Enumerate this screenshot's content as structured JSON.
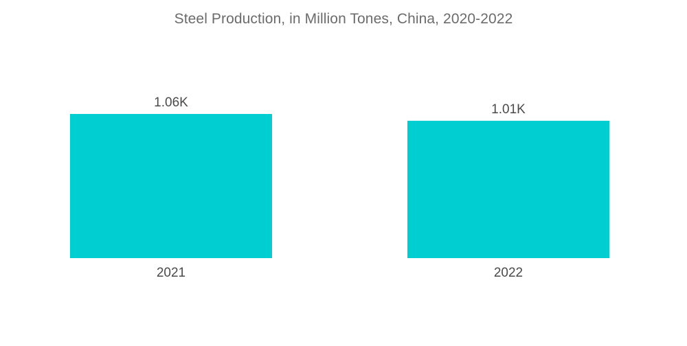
{
  "colors": {
    "bar": "#00CED1",
    "text": "#4a4a4a",
    "title": "#6b6b6b"
  },
  "chart_data": {
    "type": "bar",
    "title": "Steel Production, in Million Tones, China, 2020-2022",
    "categories": [
      "2021",
      "2022"
    ],
    "values": [
      1060,
      1010
    ],
    "value_labels": [
      "1.06K",
      "1.01K"
    ],
    "xlabel": "",
    "ylabel": "",
    "ylim": [
      0,
      1060
    ],
    "grid": false,
    "legend": "none"
  }
}
